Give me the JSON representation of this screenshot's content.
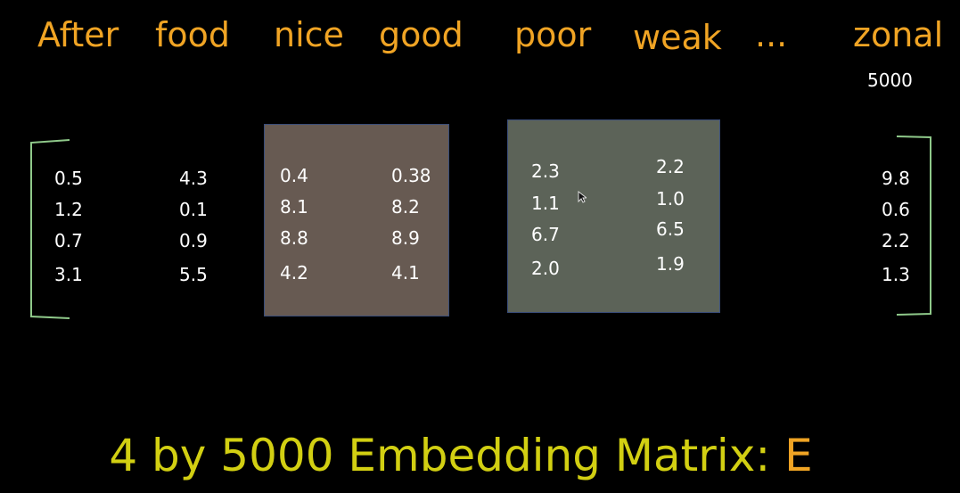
{
  "words": [
    "After",
    "food",
    "nice",
    "good",
    "poor",
    "weak",
    "...",
    "zonal"
  ],
  "vocab_size": "5000",
  "columns": [
    {
      "word": "After",
      "values": [
        "0.5",
        "1.2",
        "0.7",
        "3.1"
      ]
    },
    {
      "word": "food",
      "values": [
        "4.3",
        "0.1",
        "0.9",
        "5.5"
      ]
    },
    {
      "word": "nice",
      "values": [
        "0.4",
        "8.1",
        "8.8",
        "4.2"
      ]
    },
    {
      "word": "good",
      "values": [
        "0.38",
        "8.2",
        "8.9",
        "4.1"
      ]
    },
    {
      "word": "poor",
      "values": [
        "2.3",
        "1.1",
        "6.7",
        "2.0"
      ]
    },
    {
      "word": "weak",
      "values": [
        "2.2",
        "1.0",
        "6.5",
        "1.9"
      ]
    },
    {
      "word": "zonal",
      "values": [
        "9.8",
        "0.6",
        "2.2",
        "1.3"
      ]
    }
  ],
  "title": {
    "main": "4 by 5000 Embedding Matrix: ",
    "symbol": "E"
  },
  "colors": {
    "word_labels": "#f0a424",
    "title": "#d2cf12",
    "bracket": "#8fc98a",
    "box_nice_good": "#675a52",
    "box_poor_weak": "#5c6358",
    "box_border": "#3a4d7a"
  }
}
